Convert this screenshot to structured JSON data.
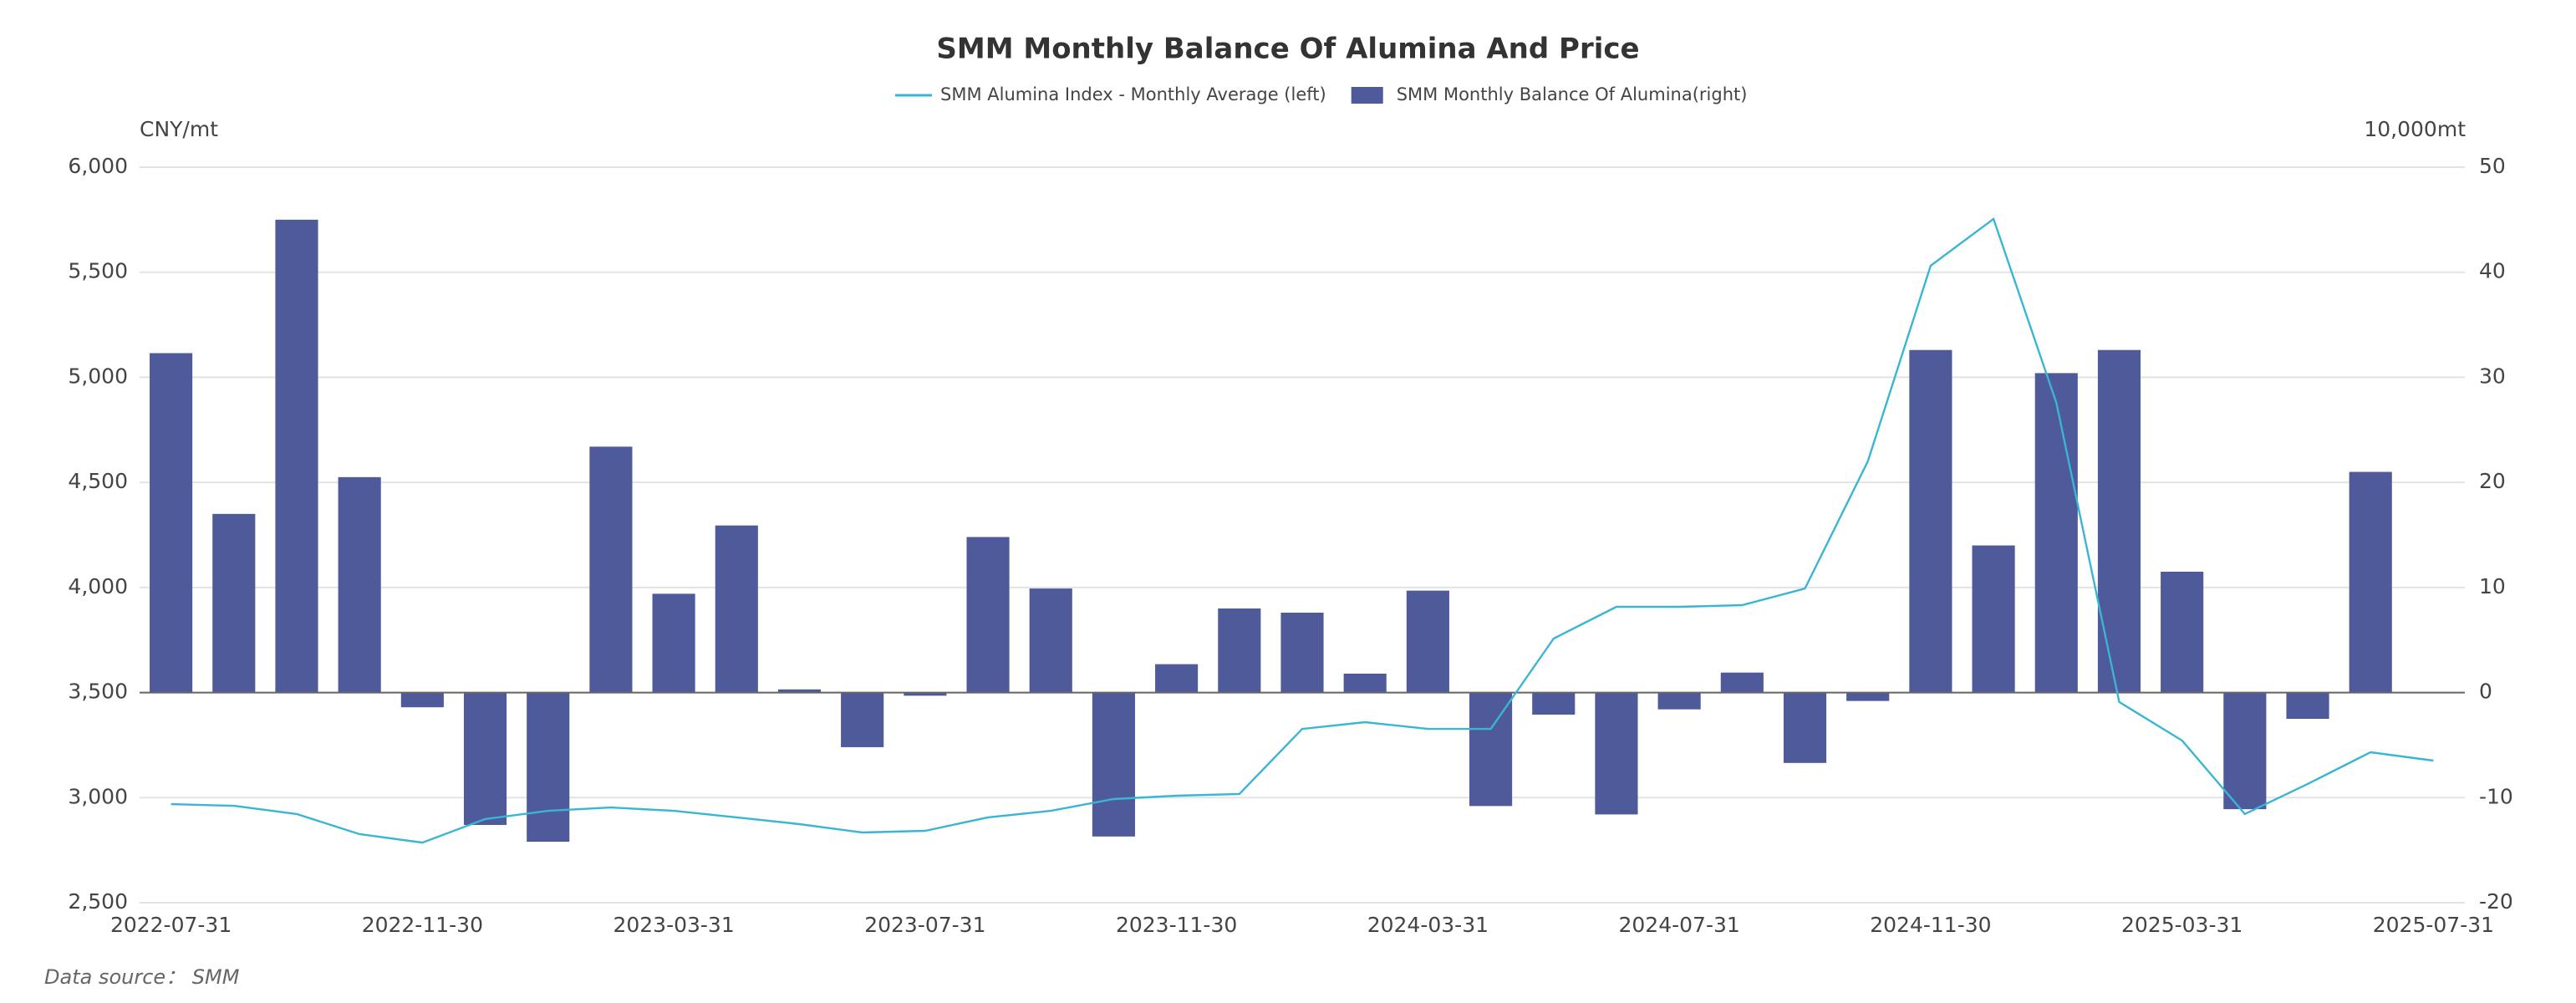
{
  "chart_data": {
    "type": "bar",
    "title": "SMM Monthly Balance Of Alumina And Price",
    "y_label": "CNY/mt",
    "y2_label": "10,000mt",
    "source": "Data source： SMM",
    "categories": [
      "2022-07-31",
      null,
      null,
      null,
      "2022-11-30",
      null,
      null,
      null,
      "2023-03-31",
      null,
      null,
      null,
      "2023-07-31",
      null,
      null,
      null,
      "2023-11-30",
      null,
      null,
      null,
      "2024-03-31",
      null,
      null,
      null,
      "2024-07-31",
      null,
      null,
      null,
      "2024-11-30",
      null,
      null,
      null,
      "2025-03-31",
      null,
      null,
      null,
      "2025-07-31"
    ],
    "series": [
      {
        "name": "SMM Alumina Index - Monthly Average (left)",
        "type": "line",
        "axis": "y",
        "color": "#3ab5d4",
        "values": [
          2969,
          2961,
          2922,
          2826,
          2786,
          2898,
          2937,
          2953,
          2937,
          2906,
          2874,
          2834,
          2842,
          2906,
          2937,
          2993,
          3009,
          3017,
          3327,
          3359,
          3327,
          3327,
          3757,
          3908,
          3908,
          3916,
          3995,
          4600,
          5531,
          5754,
          4879,
          3455,
          3272,
          2922,
          3065,
          3216,
          3176
        ]
      },
      {
        "name": "SMM Monthly Balance Of Alumina(right)",
        "type": "bar",
        "axis": "y2",
        "color": "#4e5a9a",
        "values": [
          32.3,
          17,
          45,
          20.5,
          -1.4,
          -12.6,
          -14.2,
          23.4,
          9.4,
          15.9,
          0.3,
          -5.2,
          -0.3,
          14.8,
          9.9,
          -13.7,
          2.7,
          8,
          7.6,
          1.8,
          9.7,
          -10.8,
          -2.1,
          -11.6,
          -1.6,
          1.9,
          -6.7,
          -0.8,
          32.6,
          14,
          30.4,
          32.6,
          11.5,
          -11.1,
          -2.5,
          21,
          null
        ]
      }
    ],
    "ylim": [
      2500,
      6000
    ],
    "yticks": [
      {
        "value": 2500,
        "label": "2,500"
      },
      {
        "value": 3000,
        "label": "3,000"
      },
      {
        "value": 3500,
        "label": "3,500"
      },
      {
        "value": 4000,
        "label": "4,000"
      },
      {
        "value": 4500,
        "label": "4,500"
      },
      {
        "value": 5000,
        "label": "5,000"
      },
      {
        "value": 5500,
        "label": "5,500"
      },
      {
        "value": 6000,
        "label": "6,000"
      }
    ],
    "y2lim": [
      -20,
      50
    ],
    "y2ticks": [
      -20,
      -10,
      0,
      10,
      20,
      30,
      40,
      50
    ],
    "grid": true
  }
}
